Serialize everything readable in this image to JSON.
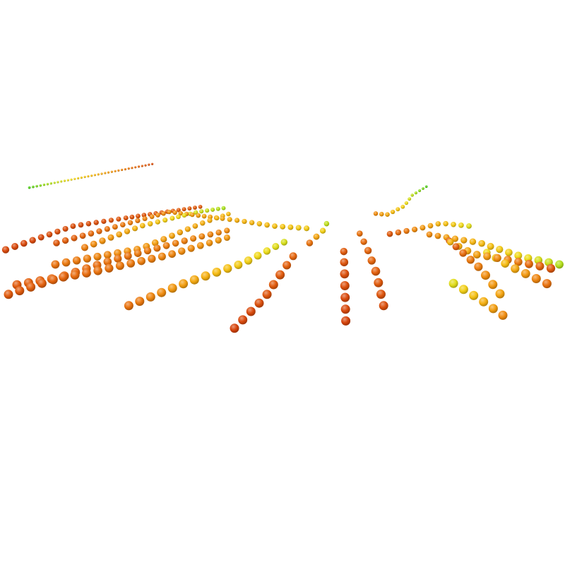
{
  "chart_data": {
    "type": "scatter",
    "subtype": "3d-sphere-trajectories",
    "title": "",
    "xlabel": "",
    "ylabel": "",
    "grid": false,
    "legend": "none",
    "color_scale": [
      "#d6430a",
      "#e76a0e",
      "#f2940f",
      "#f6bb12",
      "#f0dc1a",
      "#a6e21e",
      "#2ec81e"
    ],
    "series": [
      {
        "color_range": [
          0.95,
          0.05
        ],
        "points": [
          [
            0.052,
            0.332
          ],
          [
            0.271,
            0.29
          ]
        ]
      },
      {
        "color_range": [
          0.02,
          0.1
        ],
        "points": [
          [
            0.01,
            0.442
          ],
          [
            0.13,
            0.4
          ],
          [
            0.26,
            0.38
          ],
          [
            0.355,
            0.366
          ]
        ]
      },
      {
        "color_range": [
          0.1,
          0.35
        ],
        "points": [
          [
            0.03,
            0.504
          ],
          [
            0.16,
            0.482
          ],
          [
            0.3,
            0.451
          ],
          [
            0.404,
            0.42
          ]
        ]
      },
      {
        "color_range": [
          0.1,
          0.3
        ],
        "points": [
          [
            0.015,
            0.521
          ],
          [
            0.2,
            0.46
          ],
          [
            0.35,
            0.42
          ],
          [
            0.415,
            0.405
          ]
        ]
      },
      {
        "color_range": [
          0.2,
          0.5
        ],
        "points": [
          [
            0.098,
            0.468
          ],
          [
            0.25,
            0.44
          ],
          [
            0.355,
            0.396
          ],
          [
            0.412,
            0.376
          ]
        ]
      },
      {
        "color_range": [
          0.25,
          0.85
        ],
        "points": [
          [
            0.15,
            0.438
          ],
          [
            0.25,
            0.4
          ],
          [
            0.35,
            0.375
          ],
          [
            0.405,
            0.367
          ]
        ]
      },
      {
        "color_range": [
          0.1,
          0.6
        ],
        "points": [
          [
            0.1,
            0.43
          ],
          [
            0.3,
            0.375
          ],
          [
            0.42,
            0.39
          ],
          [
            0.485,
            0.4
          ],
          [
            0.555,
            0.405
          ]
        ]
      },
      {
        "color_range": [
          0.2,
          0.75
        ],
        "points": [
          [
            0.228,
            0.541
          ],
          [
            0.33,
            0.5
          ],
          [
            0.43,
            0.466
          ],
          [
            0.51,
            0.425
          ]
        ]
      },
      {
        "color_range": [
          0.2,
          0.85
        ],
        "points": [
          [
            0.548,
            0.43
          ],
          [
            0.575,
            0.405
          ],
          [
            0.58,
            0.39
          ]
        ]
      },
      {
        "color_range": [
          0.0,
          0.15
        ],
        "points": [
          [
            0.415,
            0.581
          ],
          [
            0.47,
            0.525
          ],
          [
            0.5,
            0.48
          ],
          [
            0.525,
            0.445
          ]
        ]
      },
      {
        "color_range": [
          0.0,
          0.1
        ],
        "points": [
          [
            0.612,
            0.568
          ],
          [
            0.61,
            0.49
          ],
          [
            0.608,
            0.43
          ]
        ]
      },
      {
        "color_range": [
          0.05,
          0.2
        ],
        "points": [
          [
            0.679,
            0.541
          ],
          [
            0.665,
            0.48
          ],
          [
            0.65,
            0.44
          ],
          [
            0.635,
            0.41
          ]
        ]
      },
      {
        "color_range": [
          0.3,
          0.95
        ],
        "points": [
          [
            0.665,
            0.378
          ],
          [
            0.685,
            0.38
          ],
          [
            0.715,
            0.365
          ],
          [
            0.73,
            0.345
          ],
          [
            0.755,
            0.33
          ]
        ]
      },
      {
        "color_range": [
          0.1,
          0.7
        ],
        "points": [
          [
            0.69,
            0.414
          ],
          [
            0.74,
            0.405
          ],
          [
            0.78,
            0.395
          ],
          [
            0.83,
            0.4
          ]
        ]
      },
      {
        "color_range": [
          0.3,
          0.8
        ],
        "points": [
          [
            0.76,
            0.415
          ],
          [
            0.85,
            0.43
          ],
          [
            0.925,
            0.455
          ],
          [
            0.99,
            0.468
          ]
        ]
      },
      {
        "color_range": [
          0.1,
          0.4
        ],
        "points": [
          [
            0.795,
            0.426
          ],
          [
            0.85,
            0.475
          ],
          [
            0.885,
            0.52
          ]
        ]
      },
      {
        "color_range": [
          0.3,
          0.7
        ],
        "points": [
          [
            0.89,
            0.558
          ],
          [
            0.85,
            0.53
          ],
          [
            0.8,
            0.5
          ]
        ]
      },
      {
        "color_range": [
          0.1,
          0.5
        ],
        "points": [
          [
            0.975,
            0.475
          ],
          [
            0.9,
            0.46
          ],
          [
            0.84,
            0.45
          ],
          [
            0.79,
            0.425
          ]
        ]
      },
      {
        "color_range": [
          0.2,
          0.7
        ],
        "points": [
          [
            0.968,
            0.502
          ],
          [
            0.9,
            0.47
          ],
          [
            0.85,
            0.44
          ]
        ]
      }
    ]
  }
}
